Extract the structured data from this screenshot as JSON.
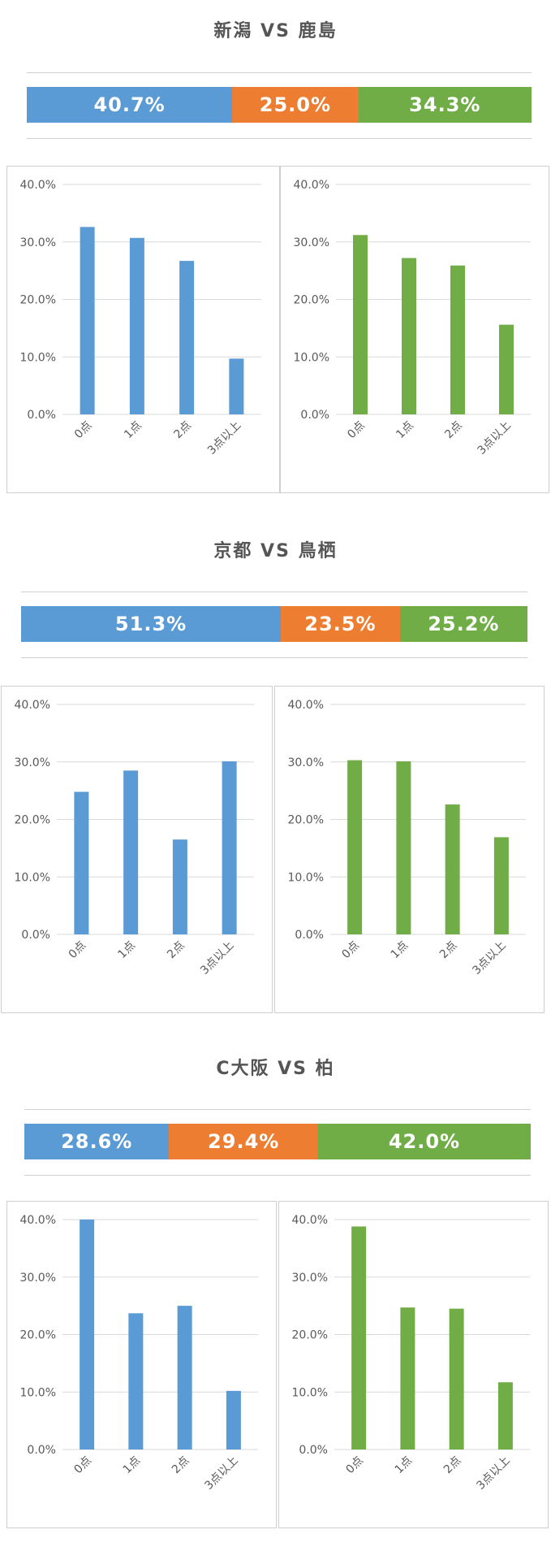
{
  "colors": {
    "home": "#5B9BD5",
    "draw": "#ED7D31",
    "away": "#70AD47"
  },
  "matches": [
    {
      "title": "新潟 VS 鹿島",
      "prob": {
        "home": 40.7,
        "draw": 25.0,
        "away": 34.3,
        "home_label": "40.7%",
        "draw_label": "25.0%",
        "away_label": "34.3%"
      },
      "charts": [
        {
          "type": "bar",
          "categories": [
            "0点",
            "1点",
            "2点",
            "3点以上"
          ],
          "y_ticks": [
            "0.0%",
            "10.0%",
            "20.0%",
            "30.0%",
            "40.0%"
          ],
          "ylim": [
            0,
            40
          ],
          "values": [
            32.6,
            30.7,
            26.7,
            9.7
          ],
          "color": "home"
        },
        {
          "type": "bar",
          "categories": [
            "0点",
            "1点",
            "2点",
            "3点以上"
          ],
          "y_ticks": [
            "0.0%",
            "10.0%",
            "20.0%",
            "30.0%",
            "40.0%"
          ],
          "ylim": [
            0,
            40
          ],
          "values": [
            31.2,
            27.2,
            25.9,
            15.6
          ],
          "color": "away"
        }
      ]
    },
    {
      "title": "京都 VS 鳥栖",
      "prob": {
        "home": 51.3,
        "draw": 23.5,
        "away": 25.2,
        "home_label": "51.3%",
        "draw_label": "23.5%",
        "away_label": "25.2%"
      },
      "charts": [
        {
          "type": "bar",
          "categories": [
            "0点",
            "1点",
            "2点",
            "3点以上"
          ],
          "y_ticks": [
            "0.0%",
            "10.0%",
            "20.0%",
            "30.0%",
            "40.0%"
          ],
          "ylim": [
            0,
            40
          ],
          "values": [
            24.8,
            28.5,
            16.5,
            30.1
          ],
          "color": "home"
        },
        {
          "type": "bar",
          "categories": [
            "0点",
            "1点",
            "2点",
            "3点以上"
          ],
          "y_ticks": [
            "0.0%",
            "10.0%",
            "20.0%",
            "30.0%",
            "40.0%"
          ],
          "ylim": [
            0,
            40
          ],
          "values": [
            30.3,
            30.1,
            22.6,
            16.9
          ],
          "color": "away"
        }
      ]
    },
    {
      "title": "C大阪 VS 柏",
      "prob": {
        "home": 28.6,
        "draw": 29.4,
        "away": 42.0,
        "home_label": "28.6%",
        "draw_label": "29.4%",
        "away_label": "42.0%"
      },
      "charts": [
        {
          "type": "bar",
          "categories": [
            "0点",
            "1点",
            "2点",
            "3点以上"
          ],
          "y_ticks": [
            "0.0%",
            "10.0%",
            "20.0%",
            "30.0%",
            "40.0%"
          ],
          "ylim": [
            0,
            40
          ],
          "values": [
            40.0,
            23.7,
            25.0,
            10.2
          ],
          "color": "home"
        },
        {
          "type": "bar",
          "categories": [
            "0点",
            "1点",
            "2点",
            "3点以上"
          ],
          "y_ticks": [
            "0.0%",
            "10.0%",
            "20.0%",
            "30.0%",
            "40.0%"
          ],
          "ylim": [
            0,
            40
          ],
          "values": [
            38.8,
            24.7,
            24.5,
            11.7
          ],
          "color": "away"
        }
      ]
    }
  ]
}
